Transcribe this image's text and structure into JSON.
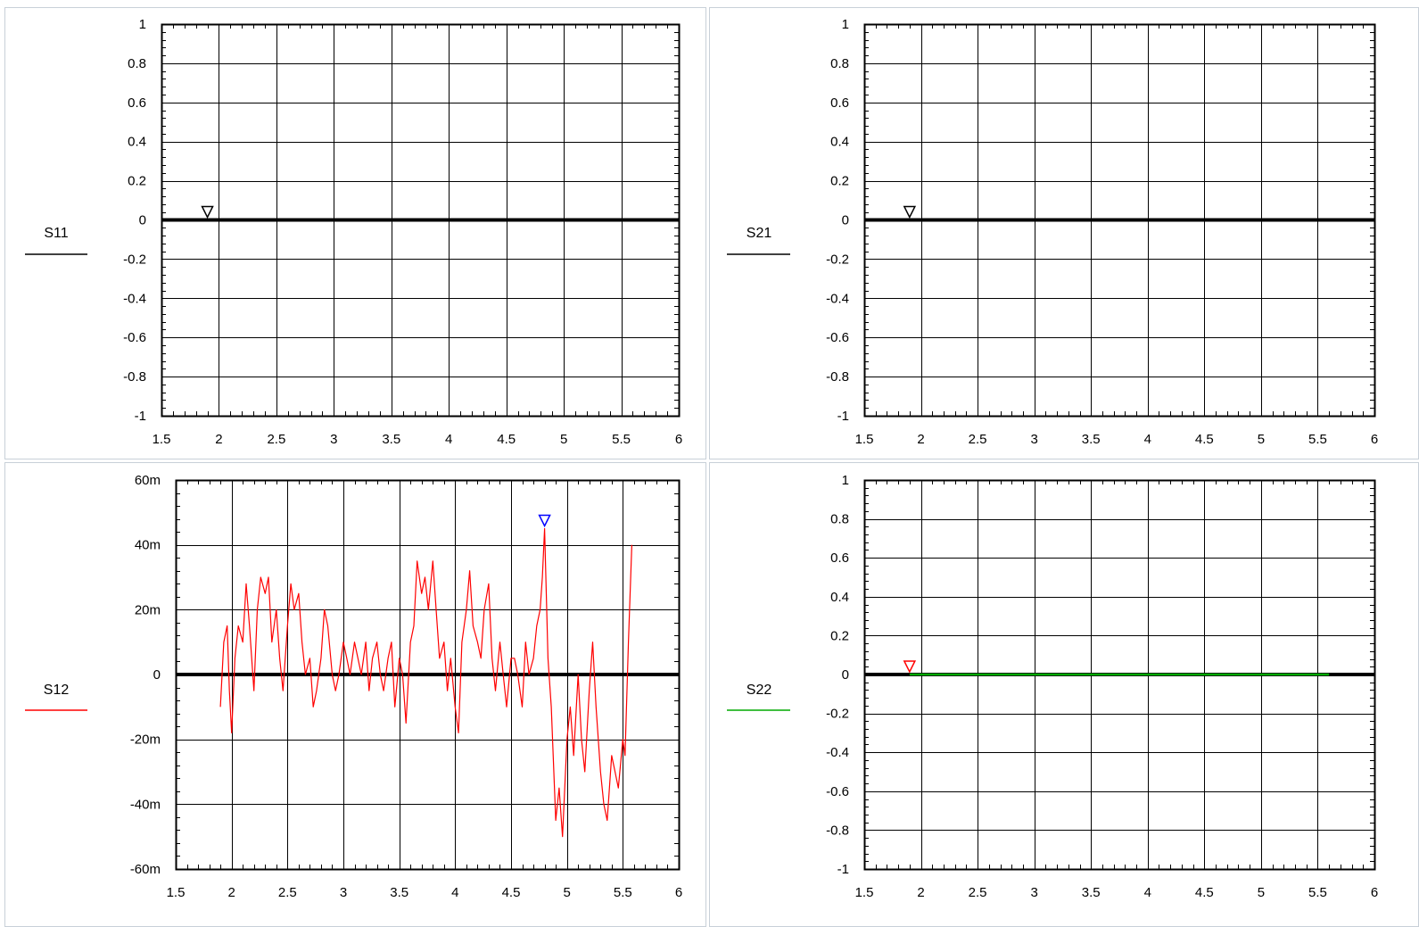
{
  "colors": {
    "background": "#ffffff",
    "panel_border": "#c8d0d8",
    "grid": "#000000",
    "zero_line": "#000000",
    "s11": "#000000",
    "s21": "#000000",
    "s12": "#ff0000",
    "s22": "#00aa00",
    "marker_black": "#000000",
    "marker_blue": "#0000ff",
    "marker_red": "#ff0000"
  },
  "chart_data": [
    {
      "type": "line",
      "name": "S11",
      "legend_placement": "left",
      "grid": true,
      "xlim": [
        1.5,
        6
      ],
      "ylim": [
        -1,
        1
      ],
      "x_ticks": [
        1.5,
        2,
        2.5,
        3,
        3.5,
        4,
        4.5,
        5,
        5.5,
        6
      ],
      "x_tick_labels": [
        "1.5",
        "2",
        "2.5",
        "3",
        "3.5",
        "4",
        "4.5",
        "5",
        "5.5",
        "6"
      ],
      "y_ticks": [
        1,
        0.8,
        0.6,
        0.4,
        0.2,
        0,
        -0.2,
        -0.4,
        -0.6,
        -0.8,
        -1
      ],
      "y_tick_labels": [
        "1",
        "0.8",
        "0.6",
        "0.4",
        "0.2",
        "0",
        "-0.2",
        "-0.4",
        "-0.6",
        "-0.8",
        "-1"
      ],
      "trace_color": "#000000",
      "marker": {
        "x": 1.9,
        "y": 0,
        "color": "#000000"
      },
      "series": [
        {
          "name": "S11",
          "x": [
            1.5,
            6
          ],
          "y": [
            0,
            0
          ]
        }
      ]
    },
    {
      "type": "line",
      "name": "S21",
      "legend_placement": "left",
      "grid": true,
      "xlim": [
        1.5,
        6
      ],
      "ylim": [
        -1,
        1
      ],
      "x_ticks": [
        1.5,
        2,
        2.5,
        3,
        3.5,
        4,
        4.5,
        5,
        5.5,
        6
      ],
      "x_tick_labels": [
        "1.5",
        "2",
        "2.5",
        "3",
        "3.5",
        "4",
        "4.5",
        "5",
        "5.5",
        "6"
      ],
      "y_ticks": [
        1,
        0.8,
        0.6,
        0.4,
        0.2,
        0,
        -0.2,
        -0.4,
        -0.6,
        -0.8,
        -1
      ],
      "y_tick_labels": [
        "1",
        "0.8",
        "0.6",
        "0.4",
        "0.2",
        "0",
        "-0.2",
        "-0.4",
        "-0.6",
        "-0.8",
        "-1"
      ],
      "trace_color": "#000000",
      "marker": {
        "x": 1.9,
        "y": 0,
        "color": "#000000"
      },
      "series": [
        {
          "name": "S21",
          "x": [
            1.5,
            6
          ],
          "y": [
            0,
            0
          ]
        }
      ]
    },
    {
      "type": "line",
      "name": "S12",
      "legend_placement": "left",
      "grid": true,
      "xlim": [
        1.5,
        6
      ],
      "ylim": [
        -60,
        60
      ],
      "y_unit": "m",
      "x_ticks": [
        1.5,
        2,
        2.5,
        3,
        3.5,
        4,
        4.5,
        5,
        5.5,
        6
      ],
      "x_tick_labels": [
        "1.5",
        "2",
        "2.5",
        "3",
        "3.5",
        "4",
        "4.5",
        "5",
        "5.5",
        "6"
      ],
      "y_ticks": [
        60,
        40,
        20,
        0,
        -20,
        -40,
        -60
      ],
      "y_tick_labels": [
        "60m",
        "40m",
        "20m",
        "0",
        "-20m",
        "-40m",
        "-60m"
      ],
      "trace_color": "#ff0000",
      "marker": {
        "x": 4.8,
        "y": 45,
        "color": "#0000ff"
      },
      "series": [
        {
          "name": "S12",
          "x": [
            1.9,
            1.93,
            1.96,
            1.98,
            2.0,
            2.03,
            2.06,
            2.1,
            2.13,
            2.16,
            2.2,
            2.23,
            2.26,
            2.3,
            2.33,
            2.36,
            2.4,
            2.43,
            2.46,
            2.5,
            2.53,
            2.56,
            2.6,
            2.63,
            2.66,
            2.7,
            2.73,
            2.76,
            2.8,
            2.83,
            2.86,
            2.9,
            2.93,
            2.96,
            3.0,
            3.03,
            3.06,
            3.1,
            3.13,
            3.16,
            3.2,
            3.23,
            3.26,
            3.3,
            3.33,
            3.36,
            3.4,
            3.43,
            3.46,
            3.5,
            3.53,
            3.56,
            3.6,
            3.63,
            3.66,
            3.7,
            3.73,
            3.76,
            3.8,
            3.83,
            3.86,
            3.9,
            3.93,
            3.96,
            4.0,
            4.03,
            4.06,
            4.1,
            4.13,
            4.16,
            4.2,
            4.23,
            4.26,
            4.3,
            4.33,
            4.36,
            4.4,
            4.43,
            4.46,
            4.5,
            4.53,
            4.56,
            4.6,
            4.63,
            4.66,
            4.7,
            4.73,
            4.76,
            4.78,
            4.8,
            4.83,
            4.86,
            4.9,
            4.93,
            4.96,
            5.0,
            5.03,
            5.06,
            5.1,
            5.13,
            5.16,
            5.2,
            5.23,
            5.26,
            5.3,
            5.33,
            5.36,
            5.4,
            5.43,
            5.46,
            5.5,
            5.52,
            5.55,
            5.58
          ],
          "y": [
            -10,
            10,
            15,
            -5,
            -18,
            5,
            15,
            10,
            28,
            15,
            -5,
            20,
            30,
            25,
            30,
            10,
            20,
            5,
            -5,
            15,
            28,
            20,
            25,
            10,
            0,
            5,
            -10,
            -5,
            5,
            20,
            15,
            0,
            -5,
            0,
            10,
            5,
            0,
            10,
            5,
            0,
            10,
            -5,
            5,
            10,
            0,
            -5,
            5,
            10,
            -10,
            5,
            0,
            -15,
            10,
            15,
            35,
            25,
            30,
            20,
            35,
            20,
            5,
            10,
            -5,
            5,
            -10,
            -18,
            10,
            20,
            32,
            15,
            10,
            5,
            20,
            28,
            5,
            -5,
            10,
            0,
            -10,
            5,
            5,
            0,
            -10,
            10,
            0,
            5,
            15,
            20,
            30,
            45,
            5,
            -10,
            -45,
            -35,
            -50,
            -20,
            -10,
            -25,
            0,
            -20,
            -30,
            -5,
            10,
            -10,
            -30,
            -40,
            -45,
            -25,
            -30,
            -35,
            -20,
            -25,
            10,
            40
          ]
        }
      ]
    },
    {
      "type": "line",
      "name": "S22",
      "legend_placement": "left",
      "grid": true,
      "xlim": [
        1.5,
        6
      ],
      "ylim": [
        -1,
        1
      ],
      "x_ticks": [
        1.5,
        2,
        2.5,
        3,
        3.5,
        4,
        4.5,
        5,
        5.5,
        6
      ],
      "x_tick_labels": [
        "1.5",
        "2",
        "2.5",
        "3",
        "3.5",
        "4",
        "4.5",
        "5",
        "5.5",
        "6"
      ],
      "y_ticks": [
        1,
        0.8,
        0.6,
        0.4,
        0.2,
        0,
        -0.2,
        -0.4,
        -0.6,
        -0.8,
        -1
      ],
      "y_tick_labels": [
        "1",
        "0.8",
        "0.6",
        "0.4",
        "0.2",
        "0",
        "-0.2",
        "-0.4",
        "-0.6",
        "-0.8",
        "-1"
      ],
      "trace_color": "#00aa00",
      "marker": {
        "x": 1.9,
        "y": 0,
        "color": "#ff0000"
      },
      "series": [
        {
          "name": "S22",
          "x": [
            1.9,
            5.6
          ],
          "y": [
            0,
            0
          ]
        }
      ]
    }
  ]
}
